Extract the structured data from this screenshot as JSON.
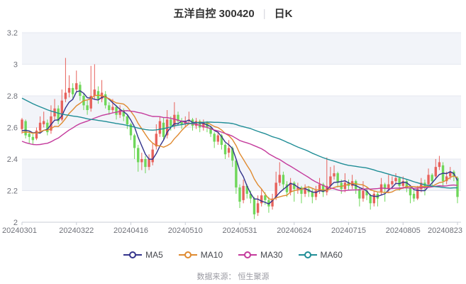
{
  "title": {
    "stock": "五洋自控 300420",
    "separator": "|",
    "period": "日K"
  },
  "source_note": "数据来源： 恒生聚源",
  "colors": {
    "up_candle": "#e7625c",
    "down_candle": "#6fd75a",
    "band": "#f2f4f9",
    "grid": "#e5e8f0",
    "axis": "#c9cdd6",
    "tick_label": "#70727a",
    "legend_label": "#45474d"
  },
  "chart_data": {
    "type": "candlestick",
    "title": "五洋自控 300420 日K",
    "ylabel": "",
    "xlabel": "",
    "y_min": 2.0,
    "y_max": 3.2,
    "y_tick_labels": [
      "3.2",
      "3",
      "2.8",
      "2.6",
      "2.4",
      "2.2",
      "2"
    ],
    "y_tick_values": [
      3.2,
      3.0,
      2.8,
      2.6,
      2.4,
      2.2,
      2.0
    ],
    "x_ticks": [
      {
        "label": "20240301",
        "index": 0
      },
      {
        "label": "20240322",
        "index": 15
      },
      {
        "label": "20240416",
        "index": 30
      },
      {
        "label": "20240510",
        "index": 45
      },
      {
        "label": "20240531",
        "index": 60
      },
      {
        "label": "20240624",
        "index": 75
      },
      {
        "label": "20240715",
        "index": 90
      },
      {
        "label": "20240805",
        "index": 105
      },
      {
        "label": "20240823",
        "index": 120
      }
    ],
    "grid": true,
    "legend_position": "bottom",
    "series_meta": [
      {
        "name": "MA5",
        "period": 5,
        "color": "#34348c"
      },
      {
        "name": "MA10",
        "period": 10,
        "color": "#df8a30"
      },
      {
        "name": "MA30",
        "period": 30,
        "color": "#c43a9c"
      },
      {
        "name": "MA60",
        "period": 60,
        "color": "#1f8d96"
      }
    ],
    "prehistory_closes_for_ma": [
      3.25,
      3.24,
      3.22,
      3.2,
      3.19,
      3.17,
      3.15,
      3.14,
      3.12,
      3.1,
      3.09,
      3.07,
      3.06,
      3.08,
      3.05,
      3.03,
      3.06,
      3.04,
      3.02,
      3.0,
      3.02,
      2.99,
      2.97,
      2.98,
      2.95,
      2.93,
      2.94,
      2.91,
      2.89,
      2.87,
      2.8,
      2.74,
      2.68,
      2.62,
      2.58,
      2.52,
      2.46,
      2.4,
      2.34,
      2.3,
      2.26,
      2.3,
      2.36,
      2.42,
      2.4,
      2.45,
      2.5,
      2.48,
      2.52,
      2.55,
      2.53,
      2.56,
      2.58,
      2.55,
      2.57,
      2.54,
      2.56,
      2.58,
      2.57
    ],
    "candles_ohlc_format": [
      "open",
      "close",
      "low",
      "high"
    ],
    "candles": [
      [
        2.59,
        2.65,
        2.56,
        2.66
      ],
      [
        2.64,
        2.55,
        2.53,
        2.65
      ],
      [
        2.56,
        2.54,
        2.5,
        2.58
      ],
      [
        2.54,
        2.52,
        2.49,
        2.56
      ],
      [
        2.53,
        2.58,
        2.52,
        2.6
      ],
      [
        2.58,
        2.63,
        2.57,
        2.67
      ],
      [
        2.62,
        2.64,
        2.6,
        2.7
      ],
      [
        2.63,
        2.57,
        2.55,
        2.65
      ],
      [
        2.58,
        2.67,
        2.56,
        2.74
      ],
      [
        2.67,
        2.72,
        2.65,
        2.78
      ],
      [
        2.72,
        2.64,
        2.62,
        2.74
      ],
      [
        2.65,
        2.77,
        2.64,
        2.84
      ],
      [
        2.78,
        2.82,
        2.76,
        3.04
      ],
      [
        2.82,
        2.85,
        2.79,
        2.93
      ],
      [
        2.85,
        2.81,
        2.78,
        2.88
      ],
      [
        2.84,
        2.88,
        2.82,
        2.96
      ],
      [
        2.87,
        2.8,
        2.77,
        2.89
      ],
      [
        2.8,
        2.74,
        2.71,
        2.82
      ],
      [
        2.74,
        2.71,
        2.68,
        2.77
      ],
      [
        2.72,
        2.8,
        2.7,
        2.99
      ],
      [
        2.8,
        2.84,
        2.78,
        3.0
      ],
      [
        2.83,
        2.78,
        2.75,
        2.86
      ],
      [
        2.78,
        2.82,
        2.76,
        2.9
      ],
      [
        2.81,
        2.74,
        2.72,
        2.83
      ],
      [
        2.74,
        2.71,
        2.68,
        2.76
      ],
      [
        2.71,
        2.73,
        2.69,
        2.78
      ],
      [
        2.73,
        2.68,
        2.65,
        2.74
      ],
      [
        2.68,
        2.71,
        2.66,
        2.74
      ],
      [
        2.71,
        2.67,
        2.64,
        2.72
      ],
      [
        2.67,
        2.62,
        2.59,
        2.68
      ],
      [
        2.62,
        2.55,
        2.52,
        2.63
      ],
      [
        2.55,
        2.47,
        2.4,
        2.56
      ],
      [
        2.47,
        2.38,
        2.32,
        2.49
      ],
      [
        2.38,
        2.4,
        2.33,
        2.44
      ],
      [
        2.4,
        2.35,
        2.31,
        2.42
      ],
      [
        2.35,
        2.4,
        2.33,
        2.43
      ],
      [
        2.38,
        2.46,
        2.36,
        2.5
      ],
      [
        2.48,
        2.56,
        2.46,
        2.62
      ],
      [
        2.56,
        2.64,
        2.54,
        2.67
      ],
      [
        2.63,
        2.54,
        2.52,
        2.66
      ],
      [
        2.55,
        2.65,
        2.53,
        2.71
      ],
      [
        2.65,
        2.61,
        2.58,
        2.67
      ],
      [
        2.61,
        2.68,
        2.59,
        2.76
      ],
      [
        2.68,
        2.64,
        2.61,
        2.7
      ],
      [
        2.64,
        2.62,
        2.59,
        2.66
      ],
      [
        2.62,
        2.64,
        2.6,
        2.67
      ],
      [
        2.64,
        2.65,
        2.62,
        2.7
      ],
      [
        2.65,
        2.61,
        2.58,
        2.66
      ],
      [
        2.61,
        2.64,
        2.59,
        2.66
      ],
      [
        2.64,
        2.6,
        2.57,
        2.65
      ],
      [
        2.6,
        2.63,
        2.58,
        2.65
      ],
      [
        2.63,
        2.6,
        2.57,
        2.64
      ],
      [
        2.6,
        2.56,
        2.54,
        2.61
      ],
      [
        2.56,
        2.51,
        2.47,
        2.57
      ],
      [
        2.51,
        2.55,
        2.49,
        2.57
      ],
      [
        2.55,
        2.49,
        2.46,
        2.56
      ],
      [
        2.49,
        2.43,
        2.4,
        2.5
      ],
      [
        2.44,
        2.47,
        2.41,
        2.52
      ],
      [
        2.47,
        2.39,
        2.35,
        2.48
      ],
      [
        2.39,
        2.22,
        2.18,
        2.4
      ],
      [
        2.22,
        2.13,
        2.09,
        2.24
      ],
      [
        2.14,
        2.23,
        2.12,
        2.27
      ],
      [
        2.23,
        2.18,
        2.15,
        2.24
      ],
      [
        2.18,
        2.15,
        2.12,
        2.2
      ],
      [
        2.15,
        2.05,
        2.02,
        2.16
      ],
      [
        2.06,
        2.12,
        2.04,
        2.17
      ],
      [
        2.12,
        2.17,
        2.1,
        2.21
      ],
      [
        2.17,
        2.14,
        2.11,
        2.19
      ],
      [
        2.14,
        2.1,
        2.06,
        2.16
      ],
      [
        2.1,
        2.15,
        2.08,
        2.18
      ],
      [
        2.16,
        2.25,
        2.14,
        2.32
      ],
      [
        2.25,
        2.3,
        2.23,
        2.38
      ],
      [
        2.3,
        2.24,
        2.21,
        2.32
      ],
      [
        2.24,
        2.19,
        2.16,
        2.26
      ],
      [
        2.19,
        2.25,
        2.17,
        2.28
      ],
      [
        2.25,
        2.21,
        2.13,
        2.26
      ],
      [
        2.21,
        2.22,
        2.18,
        2.25
      ],
      [
        2.22,
        2.18,
        2.12,
        2.23
      ],
      [
        2.18,
        2.21,
        2.16,
        2.24
      ],
      [
        2.21,
        2.19,
        2.16,
        2.23
      ],
      [
        2.19,
        2.16,
        2.12,
        2.21
      ],
      [
        2.16,
        2.2,
        2.14,
        2.23
      ],
      [
        2.2,
        2.24,
        2.18,
        2.28
      ],
      [
        2.24,
        2.19,
        2.16,
        2.25
      ],
      [
        2.19,
        2.23,
        2.17,
        2.41
      ],
      [
        2.23,
        2.29,
        2.21,
        2.35
      ],
      [
        2.29,
        2.31,
        2.27,
        2.36
      ],
      [
        2.31,
        2.25,
        2.22,
        2.32
      ],
      [
        2.25,
        2.21,
        2.18,
        2.27
      ],
      [
        2.21,
        2.25,
        2.19,
        2.31
      ],
      [
        2.25,
        2.23,
        2.2,
        2.27
      ],
      [
        2.23,
        2.26,
        2.21,
        2.3
      ],
      [
        2.26,
        2.21,
        2.18,
        2.27
      ],
      [
        2.21,
        2.15,
        2.1,
        2.22
      ],
      [
        2.15,
        2.2,
        2.13,
        2.26
      ],
      [
        2.2,
        2.17,
        2.14,
        2.22
      ],
      [
        2.17,
        2.12,
        2.08,
        2.18
      ],
      [
        2.12,
        2.18,
        2.1,
        2.2
      ],
      [
        2.18,
        2.15,
        2.1,
        2.19
      ],
      [
        2.19,
        2.24,
        2.17,
        2.28
      ],
      [
        2.24,
        2.21,
        2.13,
        2.25
      ],
      [
        2.21,
        2.24,
        2.19,
        2.3
      ],
      [
        2.24,
        2.26,
        2.22,
        2.29
      ],
      [
        2.26,
        2.28,
        2.24,
        2.31
      ],
      [
        2.28,
        2.23,
        2.2,
        2.29
      ],
      [
        2.23,
        2.26,
        2.21,
        2.29
      ],
      [
        2.26,
        2.22,
        2.19,
        2.27
      ],
      [
        2.22,
        2.17,
        2.12,
        2.23
      ],
      [
        2.18,
        2.15,
        2.13,
        2.2
      ],
      [
        2.15,
        2.21,
        2.14,
        2.23
      ],
      [
        2.21,
        2.25,
        2.19,
        2.28
      ],
      [
        2.25,
        2.22,
        2.17,
        2.27
      ],
      [
        2.24,
        2.3,
        2.22,
        2.34
      ],
      [
        2.3,
        2.26,
        2.23,
        2.31
      ],
      [
        2.29,
        2.35,
        2.27,
        2.4
      ],
      [
        2.35,
        2.38,
        2.33,
        2.42
      ],
      [
        2.36,
        2.26,
        2.23,
        2.38
      ],
      [
        2.26,
        2.29,
        2.24,
        2.32
      ],
      [
        2.29,
        2.32,
        2.27,
        2.35
      ],
      [
        2.32,
        2.29,
        2.26,
        2.33
      ],
      [
        2.28,
        2.16,
        2.12,
        2.29
      ]
    ]
  },
  "legend": {
    "items": [
      {
        "label": "MA5"
      },
      {
        "label": "MA10"
      },
      {
        "label": "MA30"
      },
      {
        "label": "MA60"
      }
    ]
  }
}
